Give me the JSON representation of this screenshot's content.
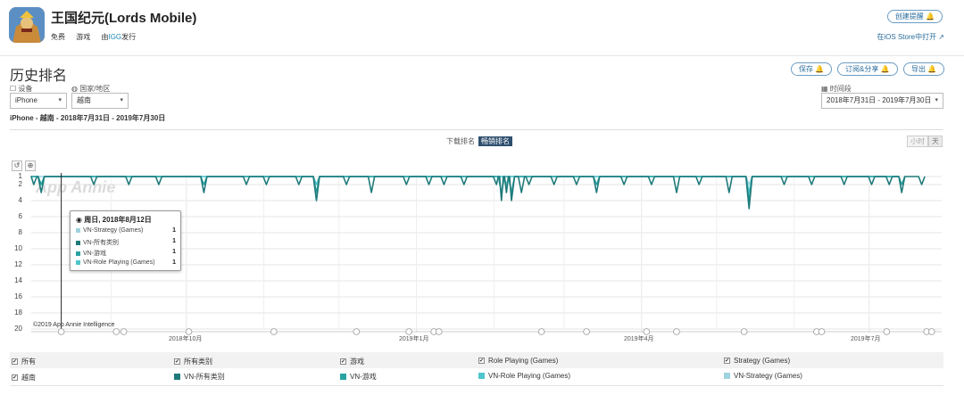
{
  "app": {
    "title": "王国纪元(Lords Mobile)",
    "price": "免费",
    "category": "游戏",
    "publisher_prefix": "由",
    "publisher": "IGG",
    "publisher_suffix": "发行",
    "create_alert_label": "创建提醒 🔔",
    "open_ios_label": "在iOS Store中打开 ↗"
  },
  "section": {
    "title": "历史排名",
    "save_label": "保存 🔔",
    "subscribe_label": "订阅&分享 🔔",
    "export_label": "导出 🔔"
  },
  "filters": {
    "device_label": "☐ 设备",
    "device_value": "iPhone",
    "country_label": "◍ 国家/地区",
    "country_value": "越南",
    "date_label": "▦ 时间段",
    "date_value": "2018年7月31日 - 2019年7月30日"
  },
  "summary": "iPhone - 越南 - 2018年7月31日 - 2019年7月30日",
  "chart_controls": {
    "download_rank_label": "下载排名",
    "grossing_rank_label": "畅销排名",
    "hour_label": "小时",
    "day_label": "天",
    "undo_icon": "↺",
    "zoom_icon": "⊕"
  },
  "chart_data": {
    "type": "line",
    "y_inverted": true,
    "ylim": [
      1,
      20
    ],
    "y_ticks": [
      1,
      2,
      4,
      6,
      8,
      10,
      12,
      14,
      16,
      18,
      20
    ],
    "x_tick_labels": [
      "2018年10月",
      "2019年1月",
      "2019年4月",
      "2019年7月"
    ],
    "x_range": [
      "2018-07-31",
      "2019-07-30"
    ],
    "series": [
      {
        "name": "VN-所有类别",
        "color": "#1f7a7a",
        "dips": [
          [
            "2018-08-01",
            2
          ],
          [
            "2018-08-04",
            3
          ],
          [
            "2018-08-12",
            1
          ],
          [
            "2018-08-25",
            2
          ],
          [
            "2018-09-08",
            2
          ],
          [
            "2018-09-20",
            2
          ],
          [
            "2018-10-08",
            3
          ],
          [
            "2018-10-25",
            2
          ],
          [
            "2018-11-02",
            2
          ],
          [
            "2018-11-15",
            2
          ],
          [
            "2018-11-22",
            4
          ],
          [
            "2018-12-04",
            2
          ],
          [
            "2018-12-14",
            3
          ],
          [
            "2018-12-28",
            2
          ],
          [
            "2019-01-06",
            2
          ],
          [
            "2019-01-12",
            2
          ],
          [
            "2019-01-20",
            2
          ],
          [
            "2019-02-02",
            2
          ],
          [
            "2019-02-04",
            4
          ],
          [
            "2019-02-06",
            3
          ],
          [
            "2019-02-08",
            4
          ],
          [
            "2019-02-12",
            3
          ],
          [
            "2019-02-15",
            2
          ],
          [
            "2019-02-25",
            2
          ],
          [
            "2019-03-06",
            2
          ],
          [
            "2019-03-14",
            3
          ],
          [
            "2019-03-25",
            2
          ],
          [
            "2019-04-05",
            2
          ],
          [
            "2019-04-15",
            3
          ],
          [
            "2019-04-24",
            2
          ],
          [
            "2019-05-06",
            3
          ],
          [
            "2019-05-14",
            5
          ],
          [
            "2019-05-28",
            2
          ],
          [
            "2019-06-08",
            2
          ],
          [
            "2019-06-21",
            2
          ],
          [
            "2019-07-02",
            2
          ],
          [
            "2019-07-09",
            2
          ],
          [
            "2019-07-14",
            3
          ],
          [
            "2019-07-22",
            2
          ]
        ]
      },
      {
        "name": "VN-游戏",
        "color": "#2aa3a3",
        "dips": [
          [
            "2018-08-04",
            2
          ],
          [
            "2018-10-08",
            2
          ],
          [
            "2018-11-22",
            3
          ],
          [
            "2019-02-04",
            3
          ],
          [
            "2019-02-08",
            3
          ],
          [
            "2019-03-14",
            2
          ],
          [
            "2019-05-14",
            4
          ],
          [
            "2019-07-14",
            2
          ]
        ]
      },
      {
        "name": "VN-Role Playing (Games)",
        "color": "#4fc6cc",
        "dips": [
          [
            "2018-08-04",
            2
          ],
          [
            "2018-11-22",
            2
          ],
          [
            "2019-02-06",
            2
          ],
          [
            "2019-05-14",
            3
          ]
        ]
      },
      {
        "name": "VN-Strategy (Games)",
        "color": "#9fd3e0",
        "dips": [
          [
            "2018-11-22",
            2
          ],
          [
            "2019-02-06",
            2
          ],
          [
            "2019-05-14",
            2
          ]
        ]
      }
    ]
  },
  "chart_meta": {
    "watermark": "App Annie",
    "copyright": "©2019 App Annie Intelligence",
    "crosshair_date": "2018-08-12",
    "event_markers": [
      "2018-08-12",
      "2018-09-03",
      "2018-09-06",
      "2018-10-02",
      "2018-11-05",
      "2018-12-08",
      "2018-12-29",
      "2019-01-08",
      "2019-01-10",
      "2019-02-20",
      "2019-03-10",
      "2019-04-03",
      "2019-04-15",
      "2019-05-12",
      "2019-06-10",
      "2019-06-12",
      "2019-07-08",
      "2019-07-24",
      "2019-07-26"
    ]
  },
  "tooltip": {
    "title": "周日, 2018年8月12日",
    "rows": [
      {
        "label": "VN-Strategy (Games)",
        "value": "1",
        "color": "#9fd3e0"
      },
      {
        "label": "VN-所有类别",
        "value": "1",
        "color": "#1f7a7a"
      },
      {
        "label": "VN-游戏",
        "value": "1",
        "color": "#2aa3a3"
      },
      {
        "label": "VN-Role Playing (Games)",
        "value": "1",
        "color": "#4fc6cc"
      }
    ]
  },
  "legend": {
    "all_label": "所有",
    "all_categories_label": "所有类别",
    "games_label": "游戏",
    "role_playing_label": "Role Playing (Games)",
    "strategy_label": "Strategy (Games)",
    "vietnam_label": "越南",
    "series_all": "VN-所有类别",
    "series_games": "VN-游戏",
    "series_role": "VN-Role Playing (Games)",
    "series_strategy": "VN-Strategy (Games)",
    "check_mark": "✔"
  }
}
